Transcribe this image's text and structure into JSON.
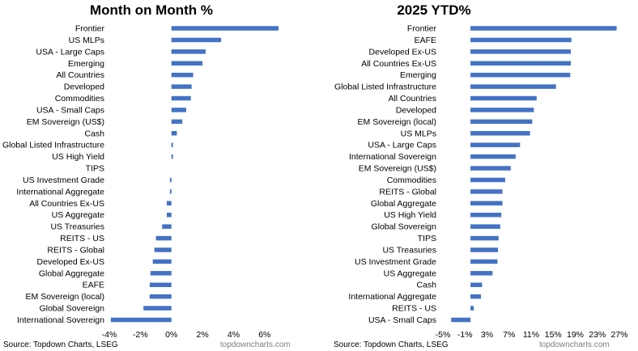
{
  "chart_data": [
    {
      "type": "bar",
      "orientation": "horizontal",
      "title": "Month on Month %",
      "categories": [
        "Frontier",
        "US MLPs",
        "USA - Large Caps",
        "Emerging",
        "All Countries",
        "Developed",
        "Commodities",
        "USA - Small Caps",
        "EM Sovereign (US$)",
        "Cash",
        "Global Listed Infrastructure",
        "US High Yield",
        "TIPS",
        "US Investment Grade",
        "International Aggregate",
        "All Countries Ex-US",
        "US Aggregate",
        "US Treasuries",
        "REITS - US",
        "REITS - Global",
        "Developed Ex-US",
        "Global Aggregate",
        "EAFE",
        "EM Sovereign (local)",
        "Global Sovereign",
        "International Sovereign"
      ],
      "values": [
        6.9,
        3.2,
        2.2,
        2.0,
        1.4,
        1.3,
        1.25,
        0.95,
        0.7,
        0.35,
        0.1,
        0.1,
        0.0,
        -0.1,
        -0.1,
        -0.3,
        -0.3,
        -0.6,
        -1.0,
        -1.1,
        -1.2,
        -1.35,
        -1.4,
        -1.4,
        -1.8,
        -3.9
      ],
      "xlim": [
        -4,
        7
      ],
      "ticks": [
        "-4%",
        "-2%",
        "0%",
        "2%",
        "4%",
        "6%"
      ],
      "tick_values": [
        -4,
        -2,
        0,
        2,
        4,
        6
      ],
      "bar_color": "#4472C4",
      "grid": false,
      "source": "Source: Topdown Charts, LSEG",
      "credit": "topdowncharts.com"
    },
    {
      "type": "bar",
      "orientation": "horizontal",
      "title": "2025 YTD%",
      "categories": [
        "Frontier",
        "EAFE",
        "Developed Ex-US",
        "All Countries Ex-US",
        "Emerging",
        "Global Listed Infrastructure",
        "All Countries",
        "Developed",
        "EM Sovereign (local)",
        "US MLPs",
        "USA - Large Caps",
        "International Sovereign",
        "EM Sovereign (US$)",
        "Commodities",
        "REITS - Global",
        "Global Aggregate",
        "US High Yield",
        "Global Sovereign",
        "TIPS",
        "US Treasuries",
        "US Investment Grade",
        "US Aggregate",
        "Cash",
        "International Aggregate",
        "REITS - US",
        "USA - Small Caps"
      ],
      "values": [
        26.5,
        18.3,
        18.2,
        18.2,
        18.1,
        15.5,
        12.0,
        11.5,
        11.2,
        10.8,
        9.0,
        8.2,
        7.3,
        6.3,
        5.8,
        5.8,
        5.6,
        5.4,
        5.1,
        5.0,
        4.9,
        4.0,
        2.1,
        1.9,
        0.6,
        -3.5
      ],
      "xlim": [
        -5,
        27
      ],
      "ticks": [
        "-5%",
        "-1%",
        "3%",
        "7%",
        "11%",
        "15%",
        "19%",
        "23%",
        "27%"
      ],
      "tick_values": [
        -5,
        -1,
        3,
        7,
        11,
        15,
        19,
        23,
        27
      ],
      "bar_color": "#4472C4",
      "grid": false,
      "source": "Source: Topdown Charts, LSEG",
      "credit": "topdowncharts.com"
    }
  ]
}
